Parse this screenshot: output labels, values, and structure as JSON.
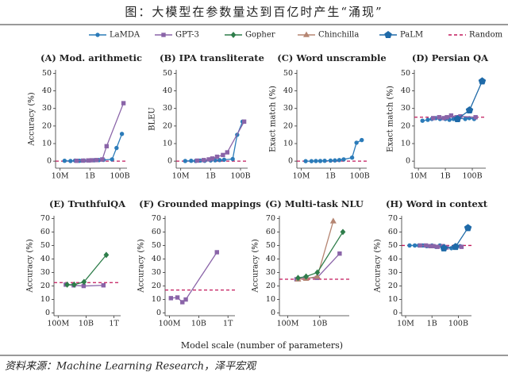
{
  "title": "图：大模型在参数量达到百亿时产生“涌现”",
  "xlabel": "Model scale (number of parameters)",
  "source": "资料来源：Machine Learning Research，泽平宏观",
  "legend": [
    {
      "name": "LaMDA",
      "color": "#2b7bb9",
      "marker": "circle"
    },
    {
      "name": "GPT-3",
      "color": "#8a64a8",
      "marker": "square"
    },
    {
      "name": "Gopher",
      "color": "#2e7d4a",
      "marker": "diamond"
    },
    {
      "name": "Chinchilla",
      "color": "#b58572",
      "marker": "triangle"
    },
    {
      "name": "PaLM",
      "color": "#1f6aa8",
      "marker": "pentagon"
    },
    {
      "name": "Random",
      "color": "#c2185b",
      "marker": "dash"
    }
  ],
  "chart_data": [
    {
      "type": "line",
      "title": "(A) Mod. arithmetic",
      "ylabel": "Accuracy (%)",
      "log_x": true,
      "xlim": [
        5000000,
        300000000000
      ],
      "xticks": [
        {
          "value": 10000000,
          "label": "10M"
        },
        {
          "value": 1000000000,
          "label": "1B"
        },
        {
          "value": 100000000000,
          "label": "100B"
        }
      ],
      "ylim": [
        -4,
        52
      ],
      "yticks": [
        0,
        10,
        20,
        30,
        40,
        50
      ],
      "random": 0,
      "random_color": "#c2185b",
      "series": [
        {
          "name": "LaMDA",
          "color": "#2b7bb9",
          "marker": "circle",
          "x": [
            20000000,
            50000000,
            100000000,
            200000000,
            400000000,
            1000000000,
            2000000000,
            4000000000,
            8000000000,
            30000000000,
            60000000000,
            137000000000
          ],
          "values": [
            0.2,
            0.1,
            0.3,
            0.2,
            0.3,
            0.4,
            0.5,
            0.6,
            0.7,
            1,
            7.5,
            15.5
          ]
        },
        {
          "name": "GPT-3",
          "color": "#8a64a8",
          "marker": "square",
          "x": [
            125000000,
            350000000,
            760000000,
            1300000000,
            2700000000,
            6700000000,
            13000000000,
            175000000000
          ],
          "values": [
            0.2,
            0.3,
            0.4,
            0.5,
            0.6,
            1,
            8.5,
            33
          ]
        }
      ]
    },
    {
      "type": "line",
      "title": "(B) IPA transliterate",
      "ylabel": "BLEU",
      "log_x": true,
      "xlim": [
        5000000,
        300000000000
      ],
      "xticks": [
        {
          "value": 10000000,
          "label": "10M"
        },
        {
          "value": 1000000000,
          "label": "1B"
        },
        {
          "value": 100000000000,
          "label": "100B"
        }
      ],
      "ylim": [
        -4,
        52
      ],
      "yticks": [
        0,
        10,
        20,
        30,
        40,
        50
      ],
      "random": 0,
      "random_color": "#c2185b",
      "series": [
        {
          "name": "LaMDA",
          "color": "#2b7bb9",
          "marker": "circle",
          "x": [
            20000000,
            50000000,
            100000000,
            200000000,
            400000000,
            1000000000,
            2000000000,
            4000000000,
            8000000000,
            30000000000,
            60000000000,
            137000000000
          ],
          "values": [
            0.1,
            0.2,
            0.1,
            0.3,
            0.2,
            0.4,
            0.5,
            0.6,
            0.8,
            1.2,
            15,
            22.5
          ]
        },
        {
          "name": "GPT-3",
          "color": "#8a64a8",
          "marker": "square",
          "x": [
            125000000,
            350000000,
            760000000,
            1300000000,
            2700000000,
            6700000000,
            13000000000,
            175000000000
          ],
          "values": [
            0.3,
            0.6,
            1,
            1.5,
            2.5,
            3.5,
            5,
            22.5
          ]
        }
      ]
    },
    {
      "type": "line",
      "title": "(C) Word unscramble",
      "ylabel": "Exact match (%)",
      "log_x": true,
      "xlim": [
        5000000,
        300000000000
      ],
      "xticks": [
        {
          "value": 10000000,
          "label": "10M"
        },
        {
          "value": 1000000000,
          "label": "1B"
        },
        {
          "value": 100000000000,
          "label": "100B"
        }
      ],
      "ylim": [
        -4,
        52
      ],
      "yticks": [
        0,
        10,
        20,
        30,
        40,
        50
      ],
      "random": 0,
      "random_color": "#c2185b",
      "series": [
        {
          "name": "LaMDA",
          "color": "#2b7bb9",
          "marker": "circle",
          "x": [
            20000000,
            50000000,
            100000000,
            200000000,
            400000000,
            1000000000,
            2000000000,
            4000000000,
            8000000000,
            30000000000,
            60000000000,
            137000000000
          ],
          "values": [
            0,
            0,
            0.1,
            0.1,
            0.2,
            0.3,
            0.4,
            0.6,
            1,
            2,
            10.5,
            12
          ]
        }
      ]
    },
    {
      "type": "line",
      "title": "(D) Persian QA",
      "ylabel": "Exact match (%)",
      "log_x": true,
      "xlim": [
        5000000,
        1000000000000
      ],
      "xticks": [
        {
          "value": 10000000,
          "label": "10M"
        },
        {
          "value": 1000000000,
          "label": "1B"
        },
        {
          "value": 100000000000,
          "label": "100B"
        }
      ],
      "ylim": [
        -4,
        52
      ],
      "yticks": [
        0,
        10,
        20,
        30,
        40,
        50
      ],
      "random": 25,
      "random_color": "#c2185b",
      "series": [
        {
          "name": "LaMDA",
          "color": "#2b7bb9",
          "marker": "circle",
          "x": [
            20000000,
            50000000,
            100000000,
            200000000,
            400000000,
            1000000000,
            2000000000,
            4000000000,
            8000000000,
            30000000000,
            60000000000,
            137000000000
          ],
          "values": [
            23,
            23.5,
            24,
            24.5,
            24,
            24,
            23.5,
            24,
            24.5,
            24,
            24.5,
            24
          ]
        },
        {
          "name": "GPT-3",
          "color": "#8a64a8",
          "marker": "square",
          "x": [
            125000000,
            350000000,
            760000000,
            1300000000,
            2700000000,
            6700000000,
            13000000000,
            175000000000
          ],
          "values": [
            24.5,
            25,
            24.5,
            25,
            26,
            25,
            25.5,
            25
          ]
        },
        {
          "name": "PaLM",
          "color": "#1f6aa8",
          "marker": "pentagon",
          "x": [
            8000000000,
            62000000000,
            540000000000
          ],
          "values": [
            24,
            29,
            45.5
          ]
        }
      ]
    },
    {
      "type": "line",
      "title": "(E) TruthfulQA",
      "ylabel": "Accuracy (%)",
      "log_x": true,
      "xlim": [
        50000000,
        3000000000000
      ],
      "xticks": [
        {
          "value": 100000000,
          "label": "100M"
        },
        {
          "value": 10000000000,
          "label": "10B"
        },
        {
          "value": 1000000000000,
          "label": "1T"
        }
      ],
      "ylim": [
        -2,
        72
      ],
      "yticks": [
        0,
        10,
        20,
        30,
        40,
        50,
        60,
        70
      ],
      "random": 22.5,
      "random_color": "#c2185b",
      "series": [
        {
          "name": "GPT-3",
          "color": "#8a64a8",
          "marker": "square",
          "x": [
            350000000,
            1300000000,
            6700000000,
            175000000000
          ],
          "values": [
            21,
            20.5,
            20,
            20.5
          ]
        },
        {
          "name": "Gopher",
          "color": "#2e7d4a",
          "marker": "diamond",
          "x": [
            440000000,
            1400000000,
            7100000000,
            280000000000
          ],
          "values": [
            21,
            21,
            23,
            43
          ]
        }
      ]
    },
    {
      "type": "line",
      "title": "(F) Grounded mappings",
      "ylabel": "Accuracy (%)",
      "log_x": true,
      "xlim": [
        50000000,
        3000000000000
      ],
      "xticks": [
        {
          "value": 100000000,
          "label": "100M"
        },
        {
          "value": 10000000000,
          "label": "10B"
        },
        {
          "value": 1000000000000,
          "label": "1T"
        }
      ],
      "ylim": [
        -2,
        72
      ],
      "yticks": [
        0,
        10,
        20,
        30,
        40,
        50,
        60,
        70
      ],
      "random": 17,
      "random_color": "#c2185b",
      "series": [
        {
          "name": "GPT-3",
          "color": "#8a64a8",
          "marker": "square",
          "x": [
            125000000,
            350000000,
            760000000,
            1300000000,
            175000000000
          ],
          "values": [
            11,
            11.5,
            8,
            10,
            45
          ]
        }
      ]
    },
    {
      "type": "line",
      "title": "(G) Multi-task NLU",
      "ylabel": "Accuracy (%)",
      "log_x": true,
      "xlim": [
        30000000,
        700000000000
      ],
      "xticks": [
        {
          "value": 100000000,
          "label": "100M"
        },
        {
          "value": 10000000000,
          "label": "10B"
        }
      ],
      "ylim": [
        -2,
        72
      ],
      "yticks": [
        0,
        10,
        20,
        30,
        40,
        50,
        60,
        70
      ],
      "random": 25,
      "random_color": "#c2185b",
      "series": [
        {
          "name": "GPT-3",
          "color": "#8a64a8",
          "marker": "square",
          "x": [
            350000000,
            1300000000,
            6700000000,
            175000000000
          ],
          "values": [
            25,
            26,
            26,
            44
          ]
        },
        {
          "name": "Chinchilla",
          "color": "#b58572",
          "marker": "triangle",
          "x": [
            440000000,
            1400000000,
            7100000000,
            70000000000
          ],
          "values": [
            25,
            25.5,
            27,
            68
          ]
        },
        {
          "name": "Gopher",
          "color": "#2e7d4a",
          "marker": "diamond",
          "x": [
            440000000,
            1400000000,
            7100000000,
            280000000000
          ],
          "values": [
            26,
            27,
            30,
            60
          ]
        }
      ]
    },
    {
      "type": "line",
      "title": "(H) Word in context",
      "ylabel": "Accuracy (%)",
      "log_x": true,
      "xlim": [
        5000000,
        1000000000000
      ],
      "xticks": [
        {
          "value": 10000000,
          "label": "10M"
        },
        {
          "value": 1000000000,
          "label": "1B"
        },
        {
          "value": 100000000000,
          "label": "100B"
        }
      ],
      "ylim": [
        -2,
        72
      ],
      "yticks": [
        0,
        10,
        20,
        30,
        40,
        50,
        60,
        70
      ],
      "random": 50,
      "random_color": "#c2185b",
      "series": [
        {
          "name": "LaMDA",
          "color": "#2b7bb9",
          "marker": "circle",
          "x": [
            20000000,
            50000000,
            100000000,
            200000000,
            400000000,
            1000000000,
            2000000000,
            4000000000,
            8000000000,
            30000000000,
            60000000000,
            137000000000
          ],
          "values": [
            50,
            50,
            50,
            50,
            49.5,
            50,
            49,
            50,
            49.5,
            48,
            49,
            49.5
          ]
        },
        {
          "name": "GPT-3",
          "color": "#8a64a8",
          "marker": "square",
          "x": [
            125000000,
            350000000,
            760000000,
            1300000000,
            2700000000,
            6700000000,
            13000000000,
            175000000000
          ],
          "values": [
            50,
            50,
            49.5,
            49.5,
            49,
            49.5,
            48.5,
            49
          ]
        },
        {
          "name": "PaLM",
          "color": "#1f6aa8",
          "marker": "pentagon",
          "x": [
            8000000000,
            62000000000,
            540000000000
          ],
          "values": [
            48,
            49,
            63
          ]
        }
      ]
    }
  ]
}
